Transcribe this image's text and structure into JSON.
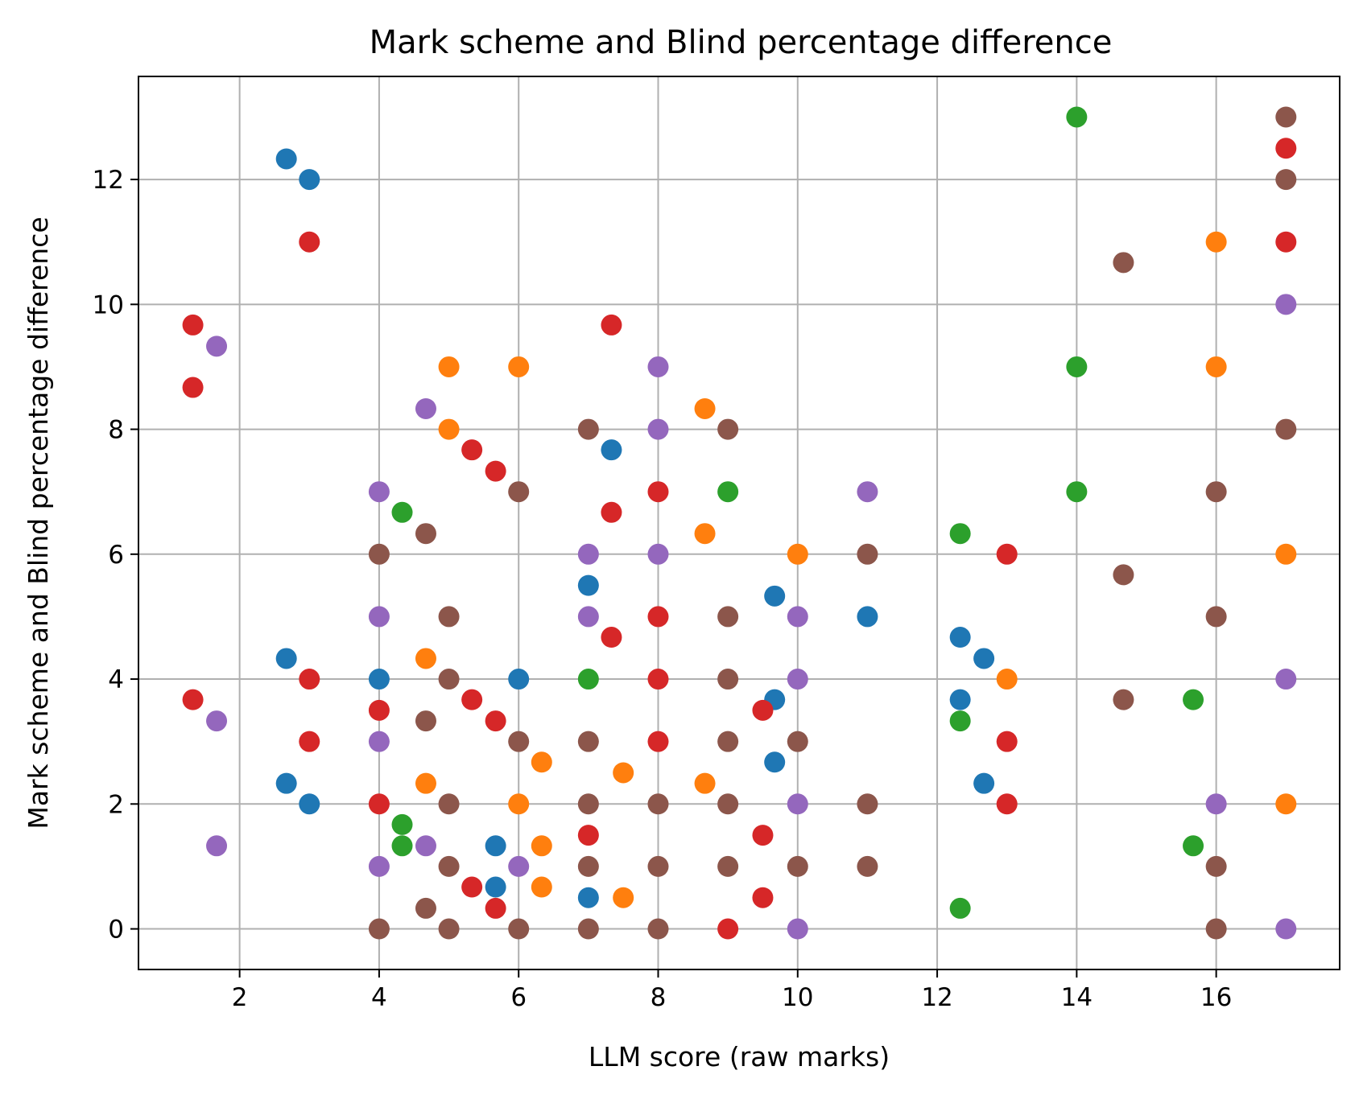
{
  "chart_data": {
    "type": "scatter",
    "title": "Mark scheme and Blind percentage difference",
    "xlabel": "LLM score (raw marks)",
    "ylabel": "Mark scheme and Blind percentage difference",
    "xlim": [
      0.55,
      17.77
    ],
    "ylim": [
      -0.65,
      13.65
    ],
    "xticks": [
      2,
      4,
      6,
      8,
      10,
      12,
      14,
      16
    ],
    "yticks": [
      0,
      2,
      4,
      6,
      8,
      10,
      12
    ],
    "grid": true,
    "colors": {
      "blue": "#1f77b4",
      "orange": "#ff7f0e",
      "green": "#2ca02c",
      "red": "#d62728",
      "purple": "#9467bd",
      "brown": "#8c564b"
    },
    "series": [
      {
        "color": "#1f77b4",
        "points": [
          [
            2.67,
            12.33
          ],
          [
            3,
            12
          ],
          [
            2.67,
            4.33
          ],
          [
            2.67,
            2.33
          ],
          [
            3,
            2
          ],
          [
            4,
            4
          ],
          [
            5.67,
            1.33
          ],
          [
            5.67,
            0.67
          ],
          [
            6,
            4
          ],
          [
            7,
            5.5
          ],
          [
            7,
            0.5
          ],
          [
            7.33,
            7.67
          ],
          [
            9.67,
            5.33
          ],
          [
            9.67,
            3.67
          ],
          [
            9.67,
            2.67
          ],
          [
            11,
            5
          ],
          [
            12.33,
            4.67
          ],
          [
            12.33,
            3.67
          ],
          [
            12.67,
            4.33
          ],
          [
            12.67,
            2.33
          ]
        ]
      },
      {
        "color": "#ff7f0e",
        "points": [
          [
            5,
            9
          ],
          [
            5,
            8
          ],
          [
            4.67,
            4.33
          ],
          [
            4.67,
            2.33
          ],
          [
            6,
            9
          ],
          [
            6,
            2
          ],
          [
            6.33,
            2.67
          ],
          [
            6.33,
            1.33
          ],
          [
            6.33,
            0.67
          ],
          [
            7.5,
            2.5
          ],
          [
            7.5,
            0.5
          ],
          [
            8.67,
            8.33
          ],
          [
            8.67,
            6.33
          ],
          [
            8.67,
            2.33
          ],
          [
            10,
            6
          ],
          [
            13,
            4
          ],
          [
            16,
            11
          ],
          [
            16,
            9
          ],
          [
            17,
            6
          ],
          [
            17,
            2
          ]
        ]
      },
      {
        "color": "#2ca02c",
        "points": [
          [
            4.33,
            6.67
          ],
          [
            4.33,
            1.67
          ],
          [
            4.33,
            1.33
          ],
          [
            7,
            4
          ],
          [
            9,
            7
          ],
          [
            12.33,
            6.33
          ],
          [
            12.33,
            3.33
          ],
          [
            12.33,
            0.33
          ],
          [
            14,
            13
          ],
          [
            14,
            9
          ],
          [
            14,
            7
          ],
          [
            15.67,
            3.67
          ],
          [
            15.67,
            1.33
          ]
        ]
      },
      {
        "color": "#d62728",
        "points": [
          [
            1.33,
            9.67
          ],
          [
            1.33,
            8.67
          ],
          [
            1.33,
            3.67
          ],
          [
            3,
            11
          ],
          [
            3,
            4
          ],
          [
            3,
            3
          ],
          [
            4,
            3.5
          ],
          [
            4,
            2
          ],
          [
            5.33,
            7.67
          ],
          [
            5.33,
            3.67
          ],
          [
            5.33,
            0.67
          ],
          [
            5.67,
            7.33
          ],
          [
            5.67,
            3.33
          ],
          [
            5.67,
            0.33
          ],
          [
            7,
            1.5
          ],
          [
            7.33,
            9.67
          ],
          [
            7.33,
            6.67
          ],
          [
            7.33,
            4.67
          ],
          [
            8,
            7
          ],
          [
            8,
            5
          ],
          [
            8,
            4
          ],
          [
            8,
            3
          ],
          [
            9,
            0
          ],
          [
            9.5,
            3.5
          ],
          [
            9.5,
            1.5
          ],
          [
            9.5,
            0.5
          ],
          [
            13,
            6
          ],
          [
            13,
            3
          ],
          [
            13,
            2
          ],
          [
            17,
            12.5
          ],
          [
            17,
            11
          ]
        ]
      },
      {
        "color": "#9467bd",
        "points": [
          [
            1.67,
            9.33
          ],
          [
            1.67,
            3.33
          ],
          [
            1.67,
            1.33
          ],
          [
            4,
            7
          ],
          [
            4,
            5
          ],
          [
            4,
            3
          ],
          [
            4,
            1
          ],
          [
            4.67,
            8.33
          ],
          [
            4.67,
            1.33
          ],
          [
            6,
            1
          ],
          [
            7,
            6
          ],
          [
            7,
            5
          ],
          [
            8,
            9
          ],
          [
            8,
            8
          ],
          [
            8,
            6
          ],
          [
            10,
            5
          ],
          [
            10,
            4
          ],
          [
            10,
            2
          ],
          [
            10,
            0
          ],
          [
            11,
            7
          ],
          [
            16,
            2
          ],
          [
            17,
            10
          ],
          [
            17,
            4
          ],
          [
            17,
            0
          ]
        ]
      },
      {
        "color": "#8c564b",
        "points": [
          [
            4,
            6
          ],
          [
            4,
            0
          ],
          [
            4.67,
            6.33
          ],
          [
            4.67,
            3.33
          ],
          [
            4.67,
            0.33
          ],
          [
            5,
            5
          ],
          [
            5,
            4
          ],
          [
            5,
            2
          ],
          [
            5,
            1
          ],
          [
            5,
            0
          ],
          [
            6,
            7
          ],
          [
            6,
            3
          ],
          [
            6,
            0
          ],
          [
            7,
            8
          ],
          [
            7,
            3
          ],
          [
            7,
            2
          ],
          [
            7,
            1
          ],
          [
            7,
            0
          ],
          [
            8,
            2
          ],
          [
            8,
            1
          ],
          [
            8,
            0
          ],
          [
            9,
            8
          ],
          [
            9,
            5
          ],
          [
            9,
            4
          ],
          [
            9,
            3
          ],
          [
            9,
            2
          ],
          [
            9,
            1
          ],
          [
            10,
            3
          ],
          [
            10,
            1
          ],
          [
            11,
            6
          ],
          [
            11,
            2
          ],
          [
            11,
            1
          ],
          [
            14.67,
            10.67
          ],
          [
            14.67,
            5.67
          ],
          [
            14.67,
            3.67
          ],
          [
            16,
            7
          ],
          [
            16,
            5
          ],
          [
            16,
            1
          ],
          [
            16,
            0
          ],
          [
            17,
            13
          ],
          [
            17,
            12
          ],
          [
            17,
            8
          ]
        ]
      }
    ]
  }
}
